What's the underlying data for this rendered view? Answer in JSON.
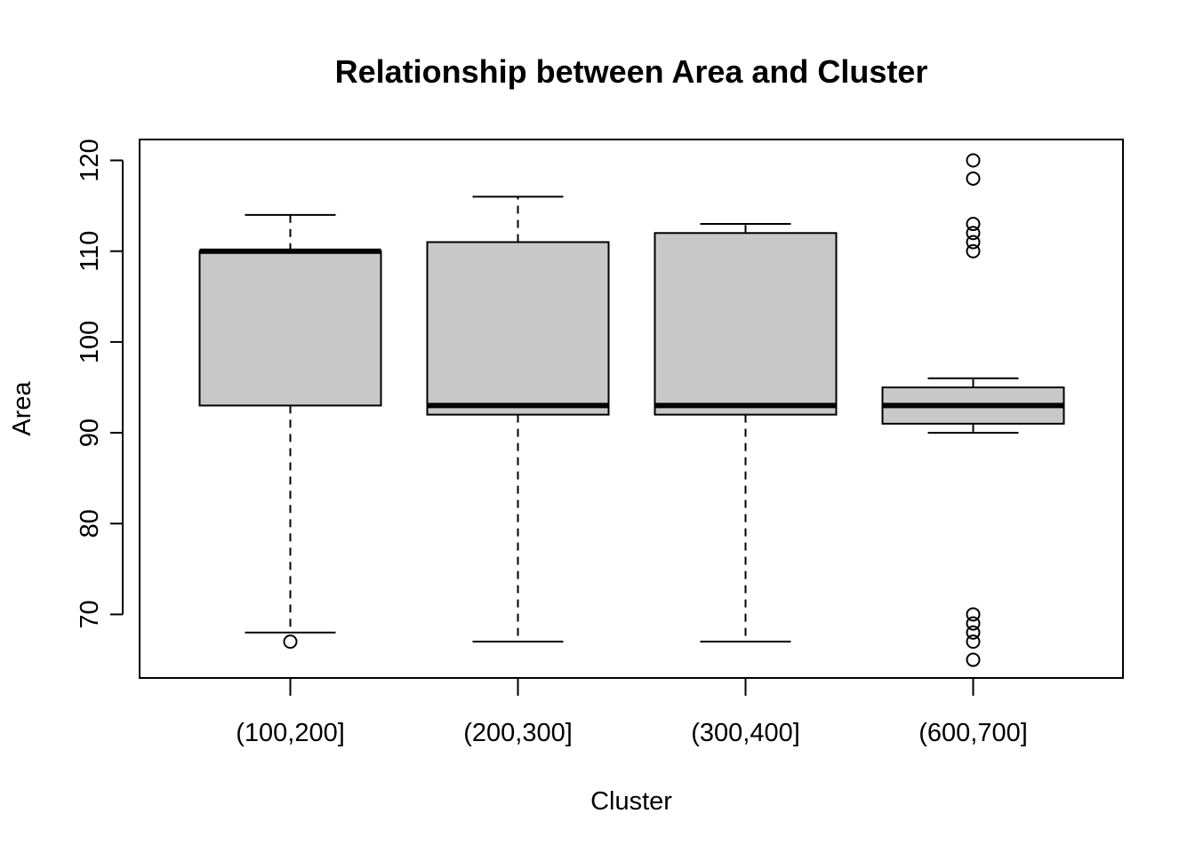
{
  "chart_data": {
    "type": "boxplot",
    "title": "Relationship between Area and Cluster",
    "xlabel": "Cluster",
    "ylabel": "Area",
    "categories": [
      "(100,200]",
      "(200,300]",
      "(300,400]",
      "(600,700]"
    ],
    "ylim": [
      63,
      122.3
    ],
    "yticks": [
      70,
      80,
      90,
      100,
      110,
      120
    ],
    "grid": false,
    "box_fill": "#c8c8c8",
    "boxes": [
      {
        "category": "(100,200]",
        "whisker_low": 68,
        "q1": 93,
        "median": 110,
        "q3": 110,
        "whisker_high": 114,
        "outliers": [
          67
        ]
      },
      {
        "category": "(200,300]",
        "whisker_low": 67,
        "q1": 92,
        "median": 93,
        "q3": 111,
        "whisker_high": 116,
        "outliers": []
      },
      {
        "category": "(300,400]",
        "whisker_low": 67,
        "q1": 92,
        "median": 93,
        "q3": 112,
        "whisker_high": 113,
        "outliers": []
      },
      {
        "category": "(600,700]",
        "whisker_low": 90,
        "q1": 91,
        "median": 93,
        "q3": 95,
        "whisker_high": 96,
        "outliers": [
          120,
          118,
          113,
          112,
          111,
          110,
          70,
          69,
          68,
          67,
          65
        ]
      }
    ]
  }
}
